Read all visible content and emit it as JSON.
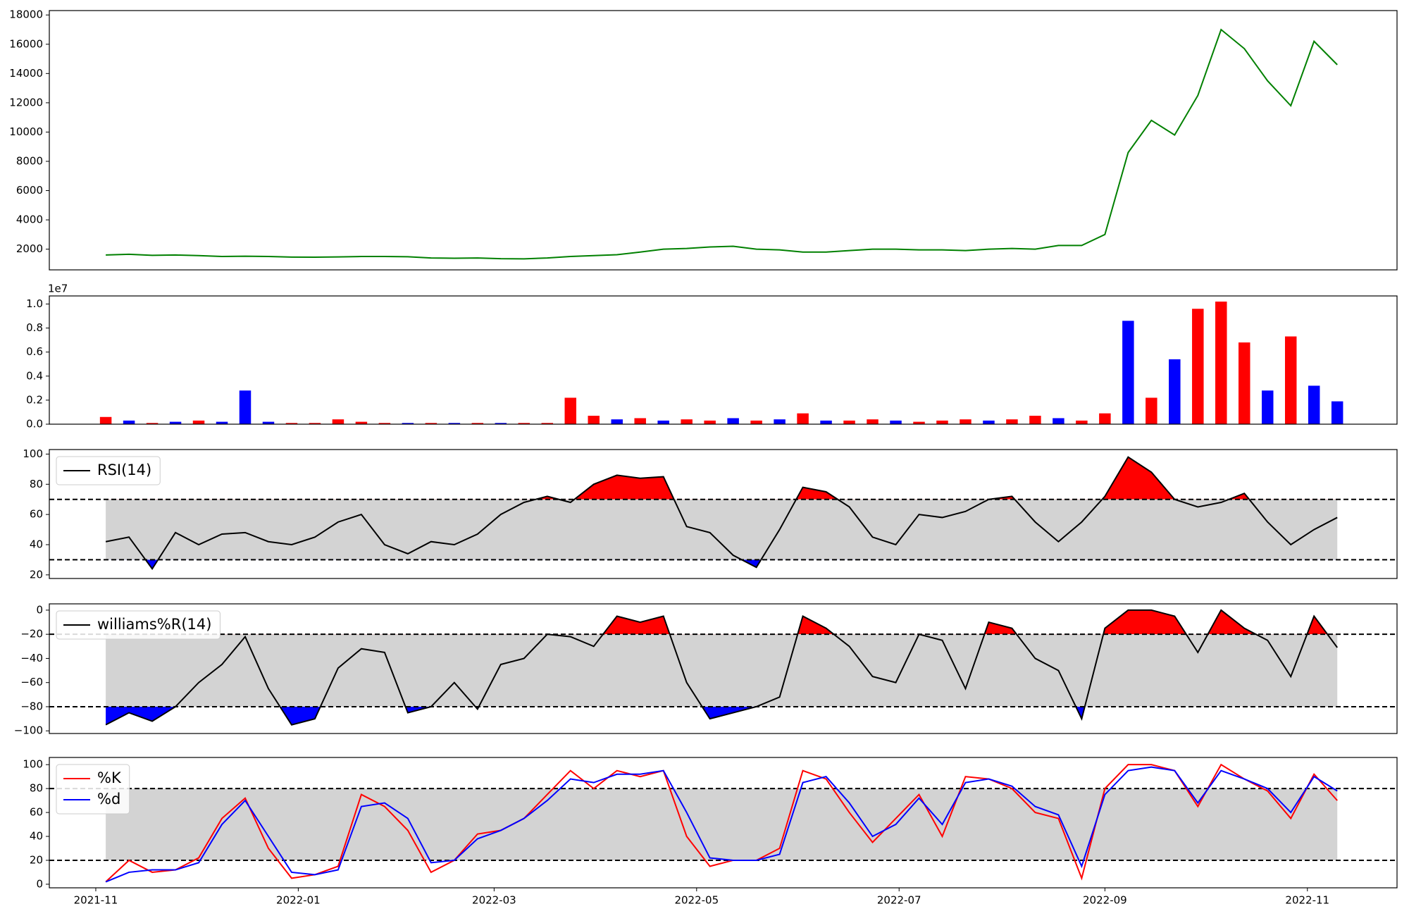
{
  "chart_data": [
    {
      "type": "line",
      "color": "green",
      "x": [
        3,
        10,
        17,
        24,
        31,
        38,
        45,
        52,
        59,
        66,
        73,
        80,
        87,
        94,
        101,
        108,
        115,
        122,
        129,
        136,
        143,
        150,
        157,
        164,
        171,
        178,
        185,
        192,
        199,
        206,
        213,
        220,
        227,
        234,
        241,
        248,
        255,
        262,
        269,
        276,
        283,
        290,
        297,
        304,
        311,
        318,
        325,
        332,
        339,
        346,
        353,
        360,
        367,
        374
      ],
      "values": [
        1600,
        1650,
        1580,
        1600,
        1560,
        1500,
        1520,
        1500,
        1460,
        1450,
        1470,
        1500,
        1500,
        1480,
        1400,
        1380,
        1400,
        1350,
        1340,
        1400,
        1500,
        1560,
        1620,
        1800,
        2000,
        2050,
        2150,
        2200,
        2000,
        1950,
        1800,
        1800,
        1900,
        2000,
        2000,
        1950,
        1950,
        1900,
        2000,
        2050,
        2000,
        2250,
        2250,
        3000,
        8600,
        10800,
        9800,
        12500,
        17000,
        15700,
        13500,
        11800,
        16200,
        14600
      ],
      "xlim": [
        -14,
        392
      ],
      "ylim": [
        585,
        18300
      ],
      "yticks": [
        2000,
        4000,
        6000,
        8000,
        10000,
        12000,
        14000,
        16000,
        18000
      ]
    },
    {
      "type": "bar",
      "offset_label": "1e7",
      "x": [
        3,
        10,
        17,
        24,
        31,
        38,
        45,
        52,
        59,
        66,
        73,
        80,
        87,
        94,
        101,
        108,
        115,
        122,
        129,
        136,
        143,
        150,
        157,
        164,
        171,
        178,
        185,
        192,
        199,
        206,
        213,
        220,
        227,
        234,
        241,
        248,
        255,
        262,
        269,
        276,
        283,
        290,
        297,
        304,
        311,
        318,
        325,
        332,
        339,
        346,
        353,
        360,
        367,
        374
      ],
      "values": [
        0.06,
        0.03,
        0.01,
        0.02,
        0.03,
        0.02,
        0.28,
        0.02,
        0.01,
        0.01,
        0.04,
        0.02,
        0.01,
        0.01,
        0.01,
        0.01,
        0.01,
        0.01,
        0.01,
        0.01,
        0.22,
        0.07,
        0.04,
        0.05,
        0.03,
        0.04,
        0.03,
        0.05,
        0.03,
        0.04,
        0.09,
        0.03,
        0.03,
        0.04,
        0.03,
        0.02,
        0.03,
        0.04,
        0.03,
        0.04,
        0.07,
        0.05,
        0.03,
        0.09,
        0.86,
        0.22,
        0.54,
        0.96,
        1.02,
        0.68,
        0.28,
        0.73,
        0.32,
        0.19
      ],
      "colors": [
        "red",
        "blue",
        "red",
        "blue",
        "red",
        "blue",
        "blue",
        "blue",
        "red",
        "red",
        "red",
        "red",
        "red",
        "blue",
        "red",
        "blue",
        "red",
        "blue",
        "red",
        "red",
        "red",
        "red",
        "blue",
        "red",
        "blue",
        "red",
        "red",
        "blue",
        "red",
        "blue",
        "red",
        "blue",
        "red",
        "red",
        "blue",
        "red",
        "red",
        "red",
        "blue",
        "red",
        "red",
        "blue",
        "red",
        "red",
        "blue",
        "red",
        "blue",
        "red",
        "red",
        "red",
        "blue",
        "red",
        "blue",
        "blue"
      ],
      "xlim": [
        -14,
        392
      ],
      "ylim": [
        0,
        1.067
      ],
      "yticks": [
        {
          "value": 0,
          "label": "0.0"
        },
        {
          "value": 0.2,
          "label": "0.2"
        },
        {
          "value": 0.4,
          "label": "0.4"
        },
        {
          "value": 0.6,
          "label": "0.6"
        },
        {
          "value": 0.8,
          "label": "0.8"
        },
        {
          "value": 1,
          "label": "1.0"
        }
      ]
    },
    {
      "type": "line",
      "fill_extremes": true,
      "bands": [
        30,
        70
      ],
      "legend": "upper left",
      "x": [
        3,
        10,
        17,
        24,
        31,
        38,
        45,
        52,
        59,
        66,
        73,
        80,
        87,
        94,
        101,
        108,
        115,
        122,
        129,
        136,
        143,
        150,
        157,
        164,
        171,
        178,
        185,
        192,
        199,
        206,
        213,
        220,
        227,
        234,
        241,
        248,
        255,
        262,
        269,
        276,
        283,
        290,
        297,
        304,
        311,
        318,
        325,
        332,
        339,
        346,
        353,
        360,
        367,
        374
      ],
      "series": [
        {
          "name": "RSI(14)",
          "color": "black",
          "values": [
            42,
            45,
            24,
            48,
            40,
            47,
            48,
            42,
            40,
            45,
            55,
            60,
            40,
            34,
            42,
            40,
            47,
            60,
            68,
            72,
            68,
            80,
            86,
            84,
            85,
            52,
            48,
            33,
            25,
            50,
            78,
            75,
            65,
            45,
            40,
            60,
            58,
            62,
            70,
            72,
            55,
            42,
            55,
            72,
            98,
            88,
            70,
            65,
            68,
            74,
            55,
            40,
            50,
            58
          ]
        }
      ],
      "xlim": [
        -14,
        392
      ],
      "ylim": [
        17.6,
        103
      ],
      "yticks": [
        20,
        40,
        60,
        80,
        100
      ]
    },
    {
      "type": "line",
      "fill_extremes": true,
      "bands": [
        -80,
        -20
      ],
      "legend": "upper left",
      "x": [
        3,
        10,
        17,
        24,
        31,
        38,
        45,
        52,
        59,
        66,
        73,
        80,
        87,
        94,
        101,
        108,
        115,
        122,
        129,
        136,
        143,
        150,
        157,
        164,
        171,
        178,
        185,
        192,
        199,
        206,
        213,
        220,
        227,
        234,
        241,
        248,
        255,
        262,
        269,
        276,
        283,
        290,
        297,
        304,
        311,
        318,
        325,
        332,
        339,
        346,
        353,
        360,
        367,
        374
      ],
      "series": [
        {
          "name": "williams%R(14)",
          "color": "black",
          "values": [
            -95,
            -85,
            -92,
            -80,
            -60,
            -45,
            -22,
            -65,
            -95,
            -90,
            -48,
            -32,
            -35,
            -85,
            -80,
            -60,
            -82,
            -45,
            -40,
            -20,
            -22,
            -30,
            -5,
            -10,
            -5,
            -60,
            -90,
            -85,
            -80,
            -72,
            -5,
            -15,
            -30,
            -55,
            -60,
            -20,
            -25,
            -65,
            -10,
            -15,
            -40,
            -50,
            -90,
            -15,
            0,
            0,
            -5,
            -35,
            0,
            -15,
            -25,
            -55,
            -5,
            -31
          ]
        }
      ],
      "xlim": [
        -14,
        392
      ],
      "ylim": [
        -102.2,
        5.2
      ],
      "yticks": [
        {
          "value": -100,
          "label": "−100"
        },
        {
          "value": -80,
          "label": "−80"
        },
        {
          "value": -60,
          "label": "−60"
        },
        {
          "value": -40,
          "label": "−40"
        },
        {
          "value": -20,
          "label": "−20"
        },
        0
      ]
    },
    {
      "type": "line",
      "bands": [
        20,
        80
      ],
      "legend": "upper left",
      "x": [
        3,
        10,
        17,
        24,
        31,
        38,
        45,
        52,
        59,
        66,
        73,
        80,
        87,
        94,
        101,
        108,
        115,
        122,
        129,
        136,
        143,
        150,
        157,
        164,
        171,
        178,
        185,
        192,
        199,
        206,
        213,
        220,
        227,
        234,
        241,
        248,
        255,
        262,
        269,
        276,
        283,
        290,
        297,
        304,
        311,
        318,
        325,
        332,
        339,
        346,
        353,
        360,
        367,
        374
      ],
      "series": [
        {
          "name": "%K",
          "color": "red",
          "values": [
            2,
            20,
            10,
            12,
            22,
            55,
            72,
            30,
            5,
            8,
            15,
            75,
            65,
            45,
            10,
            20,
            42,
            45,
            55,
            75,
            95,
            80,
            95,
            90,
            95,
            40,
            15,
            20,
            20,
            30,
            95,
            88,
            60,
            35,
            55,
            75,
            40,
            90,
            88,
            80,
            60,
            55,
            5,
            80,
            100,
            100,
            95,
            65,
            100,
            88,
            78,
            55,
            92,
            70
          ]
        },
        {
          "name": "%d",
          "color": "blue",
          "values": [
            2,
            10,
            12,
            12,
            18,
            50,
            70,
            40,
            10,
            8,
            12,
            65,
            68,
            55,
            18,
            20,
            38,
            45,
            55,
            70,
            88,
            85,
            92,
            92,
            95,
            60,
            22,
            20,
            20,
            25,
            85,
            90,
            68,
            40,
            50,
            72,
            50,
            85,
            88,
            82,
            65,
            58,
            15,
            75,
            95,
            98,
            95,
            68,
            95,
            88,
            80,
            60,
            90,
            78
          ]
        }
      ],
      "xlim": [
        -14,
        392
      ],
      "ylim": [
        -3,
        106
      ],
      "yticks": [
        0,
        20,
        40,
        60,
        80,
        100
      ],
      "xticks": [
        {
          "value": 0,
          "label": "2021-11"
        },
        {
          "value": 61,
          "label": "2022-01"
        },
        {
          "value": 120,
          "label": "2022-03"
        },
        {
          "value": 181,
          "label": "2022-05"
        },
        {
          "value": 242,
          "label": "2022-07"
        },
        {
          "value": 304,
          "label": "2022-09"
        },
        {
          "value": 365,
          "label": "2022-11"
        }
      ]
    }
  ]
}
